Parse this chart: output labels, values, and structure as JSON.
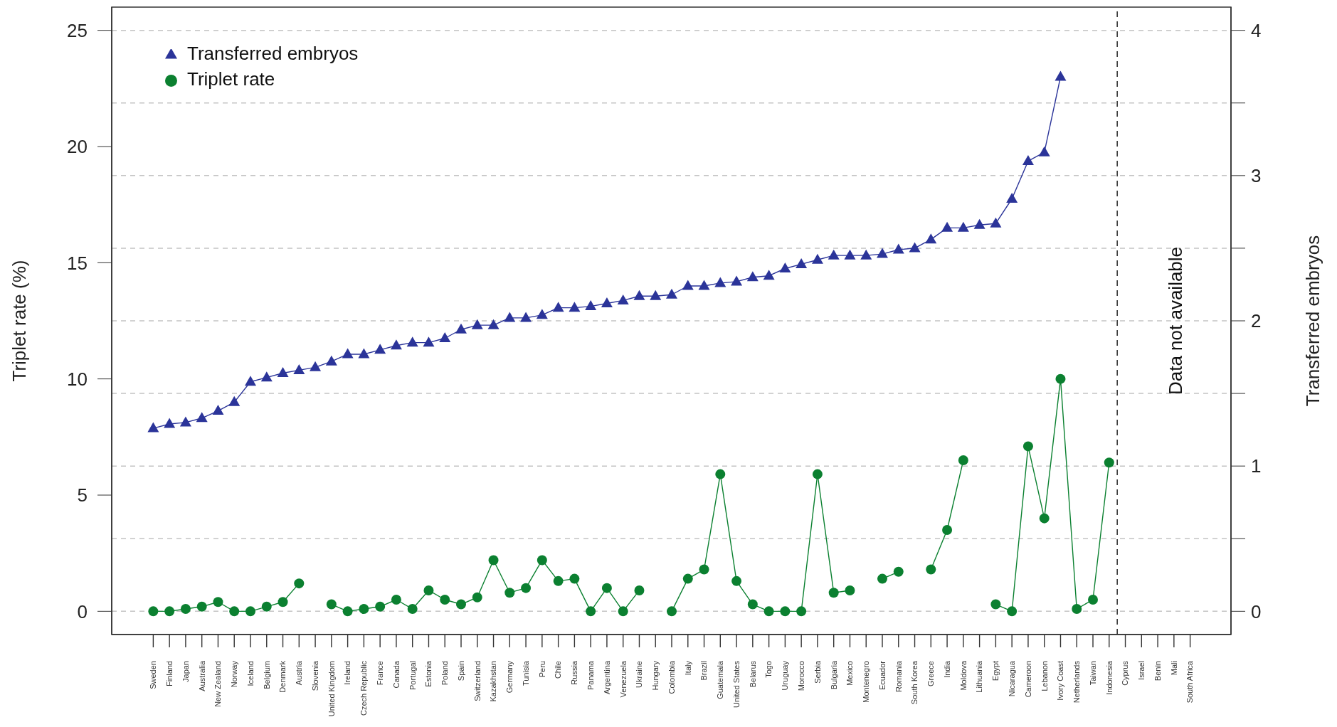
{
  "chart_data": {
    "type": "line",
    "ylabel": "Triplet rate (%)",
    "y2label": "Transferred embryos",
    "categories": [
      "Sweden",
      "Finland",
      "Japan",
      "Australia",
      "New Zealand",
      "Norway",
      "Iceland",
      "Belgium",
      "Denmark",
      "Austria",
      "Slovenia",
      "United Kingdom",
      "Ireland",
      "Czech Republic",
      "France",
      "Canada",
      "Portugal",
      "Estonia",
      "Poland",
      "Spain",
      "Switzerland",
      "Kazakhstan",
      "Germany",
      "Tunisia",
      "Peru",
      "Chile",
      "Russia",
      "Panama",
      "Argentina",
      "Venezuela",
      "Ukraine",
      "Hungary",
      "Colombia",
      "Italy",
      "Brazil",
      "Guatemala",
      "United States",
      "Belarus",
      "Togo",
      "Uruguay",
      "Morocco",
      "Serbia",
      "Bulgaria",
      "Mexico",
      "Montenegro",
      "Ecuador",
      "Romania",
      "South Korea",
      "Greece",
      "India",
      "Moldova",
      "Lithuania",
      "Egypt",
      "Nicaragua",
      "Cameroon",
      "Lebanon",
      "Ivory Coast",
      "Netherlands",
      "Taiwan",
      "Indonesia",
      "Cyprus",
      "Israel",
      "Benin",
      "Mali",
      "South Africa"
    ],
    "series": [
      {
        "name": "Transferred embryos",
        "color": "#2b3499",
        "axis": "y2",
        "marker": "triangle",
        "values": [
          1.26,
          1.29,
          1.3,
          1.33,
          1.38,
          1.44,
          1.58,
          1.61,
          1.64,
          1.66,
          1.68,
          1.72,
          1.77,
          1.77,
          1.8,
          1.83,
          1.85,
          1.85,
          1.88,
          1.94,
          1.97,
          1.97,
          2.02,
          2.02,
          2.04,
          2.09,
          2.09,
          2.1,
          2.12,
          2.14,
          2.17,
          2.17,
          2.18,
          2.24,
          2.24,
          2.26,
          2.27,
          2.3,
          2.31,
          2.36,
          2.39,
          2.42,
          2.45,
          2.45,
          2.45,
          2.46,
          2.49,
          2.5,
          2.56,
          2.64,
          2.64,
          2.66,
          2.67,
          2.84,
          3.1,
          3.16,
          3.68,
          null,
          null,
          null,
          null,
          null,
          null,
          null,
          null
        ]
      },
      {
        "name": "Triplet rate",
        "color": "#0b8030",
        "marker": "circle",
        "values": [
          0,
          0,
          0.1,
          0.2,
          0.4,
          0,
          0,
          0.2,
          0.4,
          1.2,
          null,
          0.3,
          0,
          0.1,
          0.2,
          0.5,
          0.1,
          0.9,
          0.5,
          0.3,
          0.6,
          2.2,
          0.8,
          1.0,
          2.2,
          1.3,
          1.4,
          0,
          1.0,
          0,
          0.9,
          null,
          0,
          1.4,
          1.8,
          5.9,
          1.3,
          0.3,
          0,
          0,
          0,
          5.9,
          0.8,
          0.9,
          null,
          1.4,
          1.7,
          null,
          1.8,
          3.5,
          6.5,
          null,
          0.3,
          0,
          7.1,
          4.0,
          10.0,
          0.1,
          0.5,
          6.4,
          null,
          null,
          null,
          null,
          null
        ]
      }
    ],
    "ylim": [
      -1,
      26
    ],
    "yticks": [
      0,
      5,
      10,
      15,
      20,
      25
    ],
    "y2lim": [
      -0.16,
      4.16
    ],
    "y2ticks": [
      0,
      {
        "value": 0.5,
        "label": null
      },
      1,
      {
        "value": 1.5,
        "label": null
      },
      2,
      {
        "value": 2.5,
        "label": null
      },
      3,
      {
        "value": 3.5,
        "label": null
      },
      4
    ],
    "grid": "y2",
    "legend": "top left",
    "line_style": "solid",
    "ref_lines": [
      {
        "axis": "x",
        "value": "Cyprus",
        "label": "Data not available",
        "color": "#333333",
        "line_style": "dashed"
      }
    ]
  }
}
